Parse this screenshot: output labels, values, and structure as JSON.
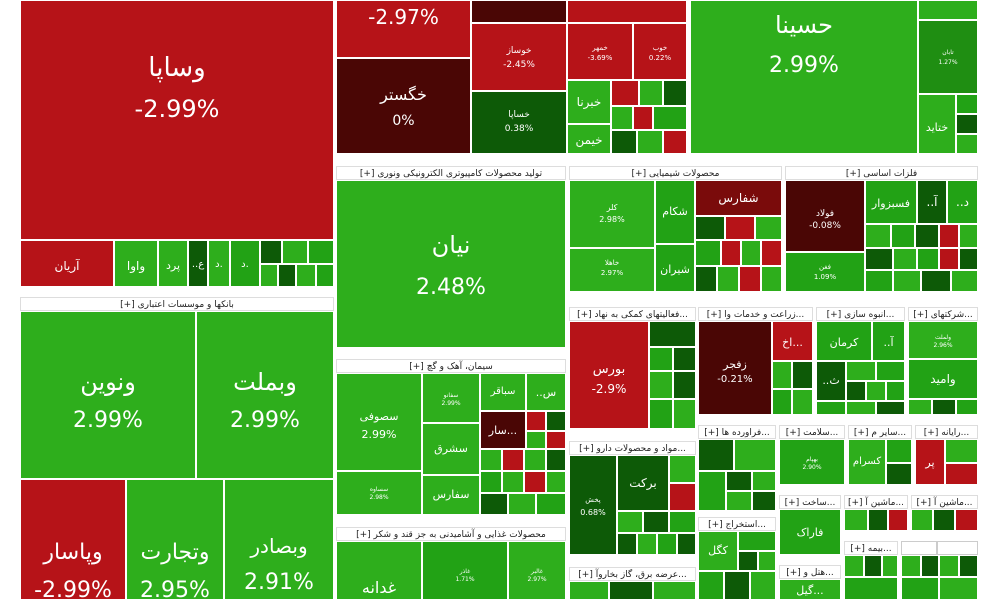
{
  "palette": {
    "strong_green": "#2eae1c",
    "green": "#22a215",
    "mid_green": "#1f8e12",
    "dark_green": "#0d5a07",
    "deep_green": "#0a4604",
    "red": "#b61318",
    "mid_red": "#a30f12",
    "dark_red": "#7a0b0b",
    "deep_red": "#4a0605",
    "white": "#ffffff"
  },
  "chart_data": {
    "type": "treemap",
    "sectors": [
      {
        "name": "بانکها و موسسات اعتباری",
        "label": "[+] بانکها و موسسات اعتباری"
      },
      {
        "name": "تولید محصولات کامپیوتری الکترونیکی ونوری",
        "label": "[+] تولید محصولات کامپیوتری الکترونیکی ونوری"
      },
      {
        "name": "محصولات شیمیایی",
        "label": "[+] محصولات شیمیایی"
      },
      {
        "name": "فلزات اساسی",
        "label": "[+] فلزات اساسی"
      },
      {
        "name": "فعالیتهای کمکی به نهاد",
        "label": "[+] فعالیتهای کمکی به نهاد..."
      },
      {
        "name": "زراعت و خدمات وا",
        "label": "[+] زراعت و خدمات وا..."
      },
      {
        "name": "انبوه سازی",
        "label": "[+] انبوه سازی..."
      },
      {
        "name": "شرکتهای",
        "label": "[+] شرکتهای..."
      },
      {
        "name": "سیمان، آهک و گچ",
        "label": "[+] سیمان، آهک و گچ"
      },
      {
        "name": "مواد و محصولات دارو",
        "label": "[+] مواد و محصولات دارو..."
      },
      {
        "name": "فراورده ها",
        "label": "[+] فراورده ها..."
      },
      {
        "name": "سلامت",
        "label": "[+] سلامت..."
      },
      {
        "name": "سایر م",
        "label": "[+] سایر م..."
      },
      {
        "name": "رایانه",
        "label": "[+] رایانه..."
      },
      {
        "name": "استخراج",
        "label": "[+] استخراج..."
      },
      {
        "name": "ساخت",
        "label": "[+] ساخت..."
      },
      {
        "name": "ماشین آ",
        "label": "[+] ماشین آ..."
      },
      {
        "name": "ماشین آ 2",
        "label": "[+] ماشین آ..."
      },
      {
        "name": "محصولات غذایی و آشامیدنی به جز قند و شکر",
        "label": "[+] محصولات غذایی و آشامیدنی به جز قند و شکر"
      },
      {
        "name": "عرضه برق، گاز بخاروآ",
        "label": "[+] عرضه برق، گاز بخاروآ..."
      },
      {
        "name": "بیمه",
        "label": "[+] بیمه..."
      },
      {
        "name": "هتل و",
        "label": "[+] هتل و..."
      }
    ],
    "tiles": [
      {
        "name": "وساپا",
        "value": "-2.99%",
        "change": -2.99
      },
      {
        "name": "",
        "value": "-2.97%",
        "change": -2.97
      },
      {
        "name": "حسینا",
        "value": "2.99%",
        "change": 2.99
      },
      {
        "name": "خگستر",
        "value": "0%",
        "change": 0
      },
      {
        "name": "خوساز",
        "value": "-2.45%",
        "change": -2.45
      },
      {
        "name": "خساپا",
        "value": "0.38%",
        "change": 0.38
      },
      {
        "name": "خمهر",
        "value": "-3.69%",
        "change": -3.69
      },
      {
        "name": "خوب",
        "value": "0.22%",
        "change": 0.22
      },
      {
        "name": "خبرنا",
        "value": "",
        "change": 2.5
      },
      {
        "name": "خیمن",
        "value": "",
        "change": 2.5
      },
      {
        "name": "تابان",
        "value": "1.27%",
        "change": 1.27
      },
      {
        "name": "ختاید",
        "value": "",
        "change": 2.5
      },
      {
        "name": "آریان",
        "value": "",
        "change": -2.5
      },
      {
        "name": "واوا",
        "value": "",
        "change": 2.0
      },
      {
        "name": "پرد",
        "value": "",
        "change": 2.0
      },
      {
        "name": "ونوین",
        "value": "2.99%",
        "change": 2.99
      },
      {
        "name": "وبملت",
        "value": "2.99%",
        "change": 2.99
      },
      {
        "name": "وپاسار",
        "value": "-2.99%",
        "change": -2.99
      },
      {
        "name": "وتجارت",
        "value": "2.95%",
        "change": 2.95
      },
      {
        "name": "وبصادر",
        "value": "2.91%",
        "change": 2.91
      },
      {
        "name": "نیان",
        "value": "2.48%",
        "change": 2.48
      },
      {
        "name": "کلر",
        "value": "2.98%",
        "change": 2.98
      },
      {
        "name": "شکام",
        "value": "",
        "change": 2.0
      },
      {
        "name": "شفارس",
        "value": "",
        "change": -2.0
      },
      {
        "name": "خاهلا",
        "value": "2.97%",
        "change": 2.97
      },
      {
        "name": "شیران",
        "value": "",
        "change": 2.5
      },
      {
        "name": "فولاد",
        "value": "-0.08%",
        "change": -0.08
      },
      {
        "name": "فسبزوار",
        "value": "",
        "change": 2.5
      },
      {
        "name": "فغن",
        "value": "1.09%",
        "change": 1.09
      },
      {
        "name": "بورس",
        "value": "-2.9%",
        "change": -2.9
      },
      {
        "name": "زفجر",
        "value": "-0.21%",
        "change": -0.21
      },
      {
        "name": "اخ",
        "value": "",
        "change": -2.9
      },
      {
        "name": "کرمان",
        "value": "",
        "change": 2.0
      },
      {
        "name": "حآ",
        "value": "",
        "change": 2.0
      },
      {
        "name": "وامید",
        "value": "",
        "change": 2.5
      },
      {
        "name": "ولملت",
        "value": "2.96%",
        "change": 2.96
      },
      {
        "name": "سصوفی",
        "value": "2.99%",
        "change": 2.99
      },
      {
        "name": "سباقر",
        "value": "",
        "change": 2.0
      },
      {
        "name": "سشرق",
        "value": "",
        "change": 2.5
      },
      {
        "name": "سفارس",
        "value": "",
        "change": 2.5
      },
      {
        "name": "سساوه",
        "value": "2.98%",
        "change": 2.98
      },
      {
        "name": "سار",
        "value": "",
        "change": -2.5
      },
      {
        "name": "برکت",
        "value": "",
        "change": 2.0
      },
      {
        "name": "پخش",
        "value": "0.68%",
        "change": 0.68
      },
      {
        "name": "کسرام",
        "value": "",
        "change": 2.5
      },
      {
        "name": "بهپام",
        "value": "2.90%",
        "change": 2.9
      },
      {
        "name": "کگل",
        "value": "",
        "change": 2.5
      },
      {
        "name": "فاراک",
        "value": "",
        "change": 2.5
      },
      {
        "name": "غدانه",
        "value": "",
        "change": 2.5
      },
      {
        "name": "غاذر",
        "value": "1.71%",
        "change": 1.71
      },
      {
        "name": "غالبر",
        "value": "2.97%",
        "change": 2.97
      },
      {
        "name": "پر",
        "value": "",
        "change": -2.5
      },
      {
        "name": "گیل",
        "value": "",
        "change": 2.0
      }
    ]
  },
  "labels": {
    "vasapa": "وساپا",
    "vasapa_v": "-2.99%",
    "top_unnamed_v": "-2.97%",
    "hasina": "حسینا",
    "hasina_v": "2.99%",
    "khgostar": "خگستر",
    "khgostar_v": "0%",
    "khvosaz": "خوساز",
    "khvosaz_v": "-2.45%",
    "khsapa": "خساپا",
    "khsapa_v": "0.38%",
    "khmehr": "خمهر",
    "khmehr_v": "-3.69%",
    "khob": "خوب",
    "khob_v": "0.22%",
    "khebrna": "خبرنا",
    "khimen": "خیمن",
    "taban": "تابان",
    "taban_v": "1.27%",
    "khtayd": "ختاید",
    "arian": "آریان",
    "vava": "واوا",
    "perd": "پرد",
    "small_a": "..ع",
    "small_b": "د.",
    "small_c": "د.",
    "vnovin": "ونوین",
    "vnovin_v": "2.99%",
    "vbmelat": "وبملت",
    "vbmelat_v": "2.99%",
    "vpasar": "وپاسار",
    "vpasar_v": "-2.99%",
    "vtejarat": "وتجارت",
    "vtejarat_v": "2.95%",
    "vbsader": "وبصادر",
    "vbsader_v": "2.91%",
    "nian": "نیان",
    "nian_v": "2.48%",
    "kalr": "کلر",
    "kalr_v": "2.98%",
    "shkam": "شکام",
    "shfars": "شفارس",
    "khahla": "خاهلا",
    "khahla_v": "2.97%",
    "shiran": "شیران",
    "foolad": "فولاد",
    "foolad_v": "-0.08%",
    "fsabzevar": "فسبزوار",
    "fa": "..آ",
    "fd": "..د",
    "fghan": "فغن",
    "fghan_v": "1.09%",
    "boors": "بورس",
    "boors_v": "-2.9%",
    "zfajr": "زفجر",
    "zfajr_v": "-0.21%",
    "akh": "اخ...",
    "kerman": "کرمان",
    "ha": "..آ",
    "hs": "..ث",
    "vamid": "وامید",
    "vlmelat": "ولملت",
    "vlmelat_v": "2.96%",
    "ssoofi": "سصوفی",
    "ssoofi_v": "2.99%",
    "sbaghr": "سباقر",
    "ss": "..س",
    "ssharq": "سشرق",
    "sfars": "سفارس",
    "ssaveh": "سساوه",
    "ssaveh_v": "2.98%",
    "sar": "سار...",
    "ssmall": "سفانو",
    "ssmall_v": "2.99%",
    "barkat": "برکت",
    "pakhsh": "پخش",
    "pakhsh_v": "0.68%",
    "kesram": "کسرام",
    "behpam": "بهپام",
    "behpam_v": "2.90%",
    "kgol": "کگل",
    "farak": "فاراک",
    "ghdane": "غدانه",
    "ghazar": "غاذر",
    "ghazar_v": "1.71%",
    "ghalbr": "غالبر",
    "ghalbr_v": "2.97%",
    "par": "پر",
    "gil": "گیل...",
    "sectors": {
      "banks": "[+] بانکها و موسسات اعتباری",
      "computer": "[+] تولید محصولات کامپیوتری الکترونیکی ونوری",
      "chemical": "[+] محصولات شیمیایی",
      "metals": "[+] فلزات اساسی",
      "financial": "[+] فعالیتهای کمکی به نهاد...",
      "agri": "[+] زراعت و خدمات وا...",
      "mass": "[+] انبوه سازی...",
      "companies": "[+] شرکتهای...",
      "cement": "[+] سیمان، آهک و گچ",
      "pharma": "[+] مواد و محصولات دارو...",
      "products": "[+] فراورده ها...",
      "health": "[+] سلامت...",
      "other": "[+] سایر م...",
      "computer2": "[+] رایانه...",
      "mining": "[+] استخراج...",
      "build": "[+] ساخت...",
      "machine1": "[+] ماشین آ...",
      "machine2": "[+] ماشین آ...",
      "food": "[+] محصولات غذایی و آشامیدنی به جز قند و شکر",
      "power": "[+] عرضه برق، گاز بخاروآ...",
      "insurance": "[+] بیمه...",
      "hotel": "[+] هتل و..."
    }
  }
}
